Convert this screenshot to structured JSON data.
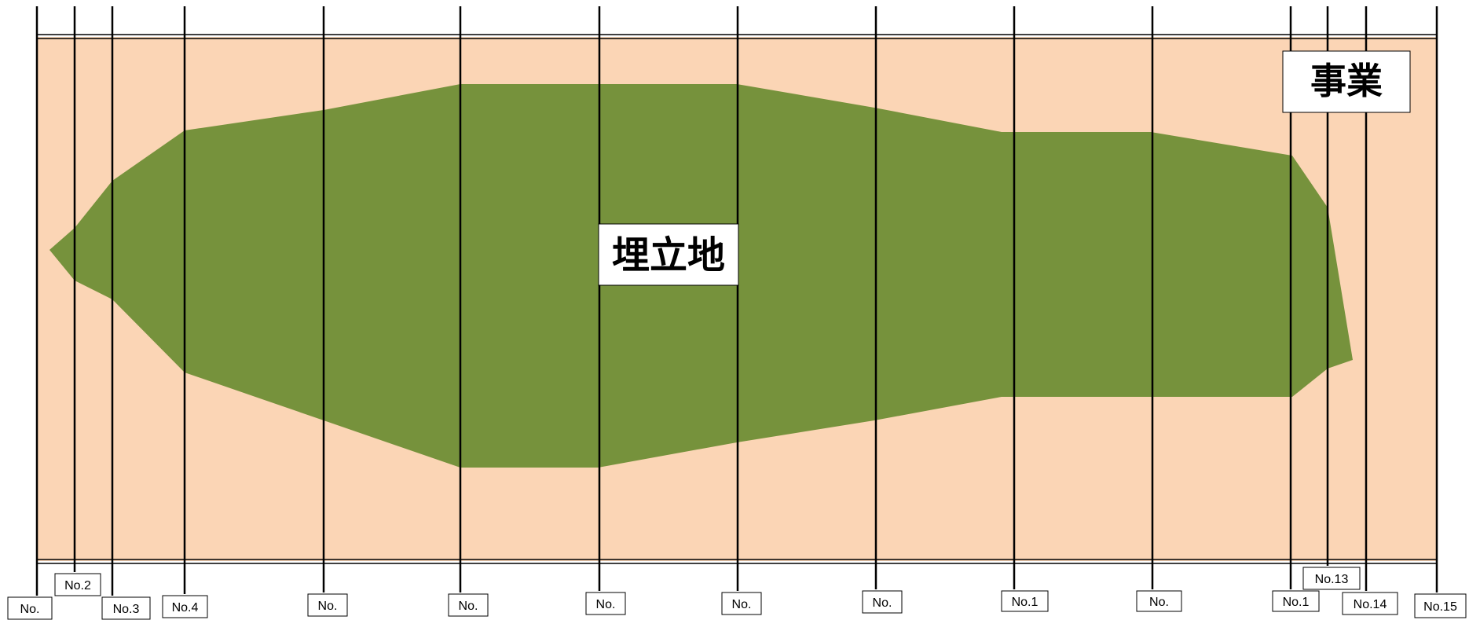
{
  "colors": {
    "background_band": "#fbd5b5",
    "landfill": "#76923c",
    "lines": "#000000",
    "label_fill": "#ffffff"
  },
  "landfill_label": "埋立地",
  "project_label": "事業",
  "stations": [
    {
      "id": "s1",
      "label": "No."
    },
    {
      "id": "s2",
      "label": "No.2"
    },
    {
      "id": "s3",
      "label": "No.3"
    },
    {
      "id": "s4",
      "label": "No.4"
    },
    {
      "id": "s5",
      "label": "No."
    },
    {
      "id": "s6",
      "label": "No."
    },
    {
      "id": "s7",
      "label": "No."
    },
    {
      "id": "s8",
      "label": "No."
    },
    {
      "id": "s9",
      "label": "No."
    },
    {
      "id": "s10",
      "label": "No.1"
    },
    {
      "id": "s11",
      "label": "No."
    },
    {
      "id": "s12",
      "label": "No.1"
    },
    {
      "id": "s13",
      "label": "No.13"
    },
    {
      "id": "s14",
      "label": "No.14"
    },
    {
      "id": "s15",
      "label": "No.15"
    }
  ]
}
